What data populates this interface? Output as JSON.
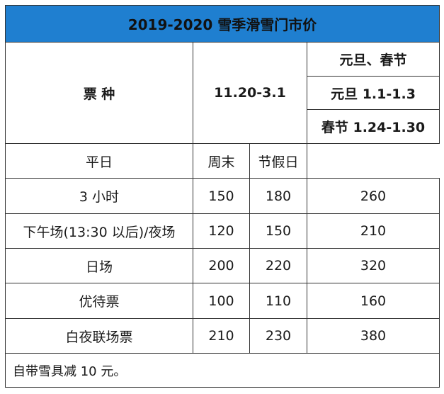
{
  "title": "2019-2020 雪季滑雪门市价",
  "header": {
    "ticket_type": "票 种",
    "season_period": "11.20-3.1",
    "holiday_title": "元旦、春节",
    "holiday_newyear": "元旦 1.1-1.3",
    "holiday_spring": "春节 1.24-1.30",
    "weekday": "平日",
    "weekend": "周末",
    "holiday": "节假日"
  },
  "rows": [
    {
      "name": "3 小时",
      "weekday": "150",
      "weekend": "180",
      "holiday": "260"
    },
    {
      "name": "下午场(13:30 以后)/夜场",
      "weekday": "120",
      "weekend": "150",
      "holiday": "210"
    },
    {
      "name": "日场",
      "weekday": "200",
      "weekend": "220",
      "holiday": "320"
    },
    {
      "name": "优待票",
      "weekday": "100",
      "weekend": "110",
      "holiday": "160"
    },
    {
      "name": "白夜联场票",
      "weekday": "210",
      "weekend": "230",
      "holiday": "380"
    }
  ],
  "note": "自带雪具减 10 元。",
  "colors": {
    "title_background": "#1f7fd0",
    "border": "#333333"
  }
}
